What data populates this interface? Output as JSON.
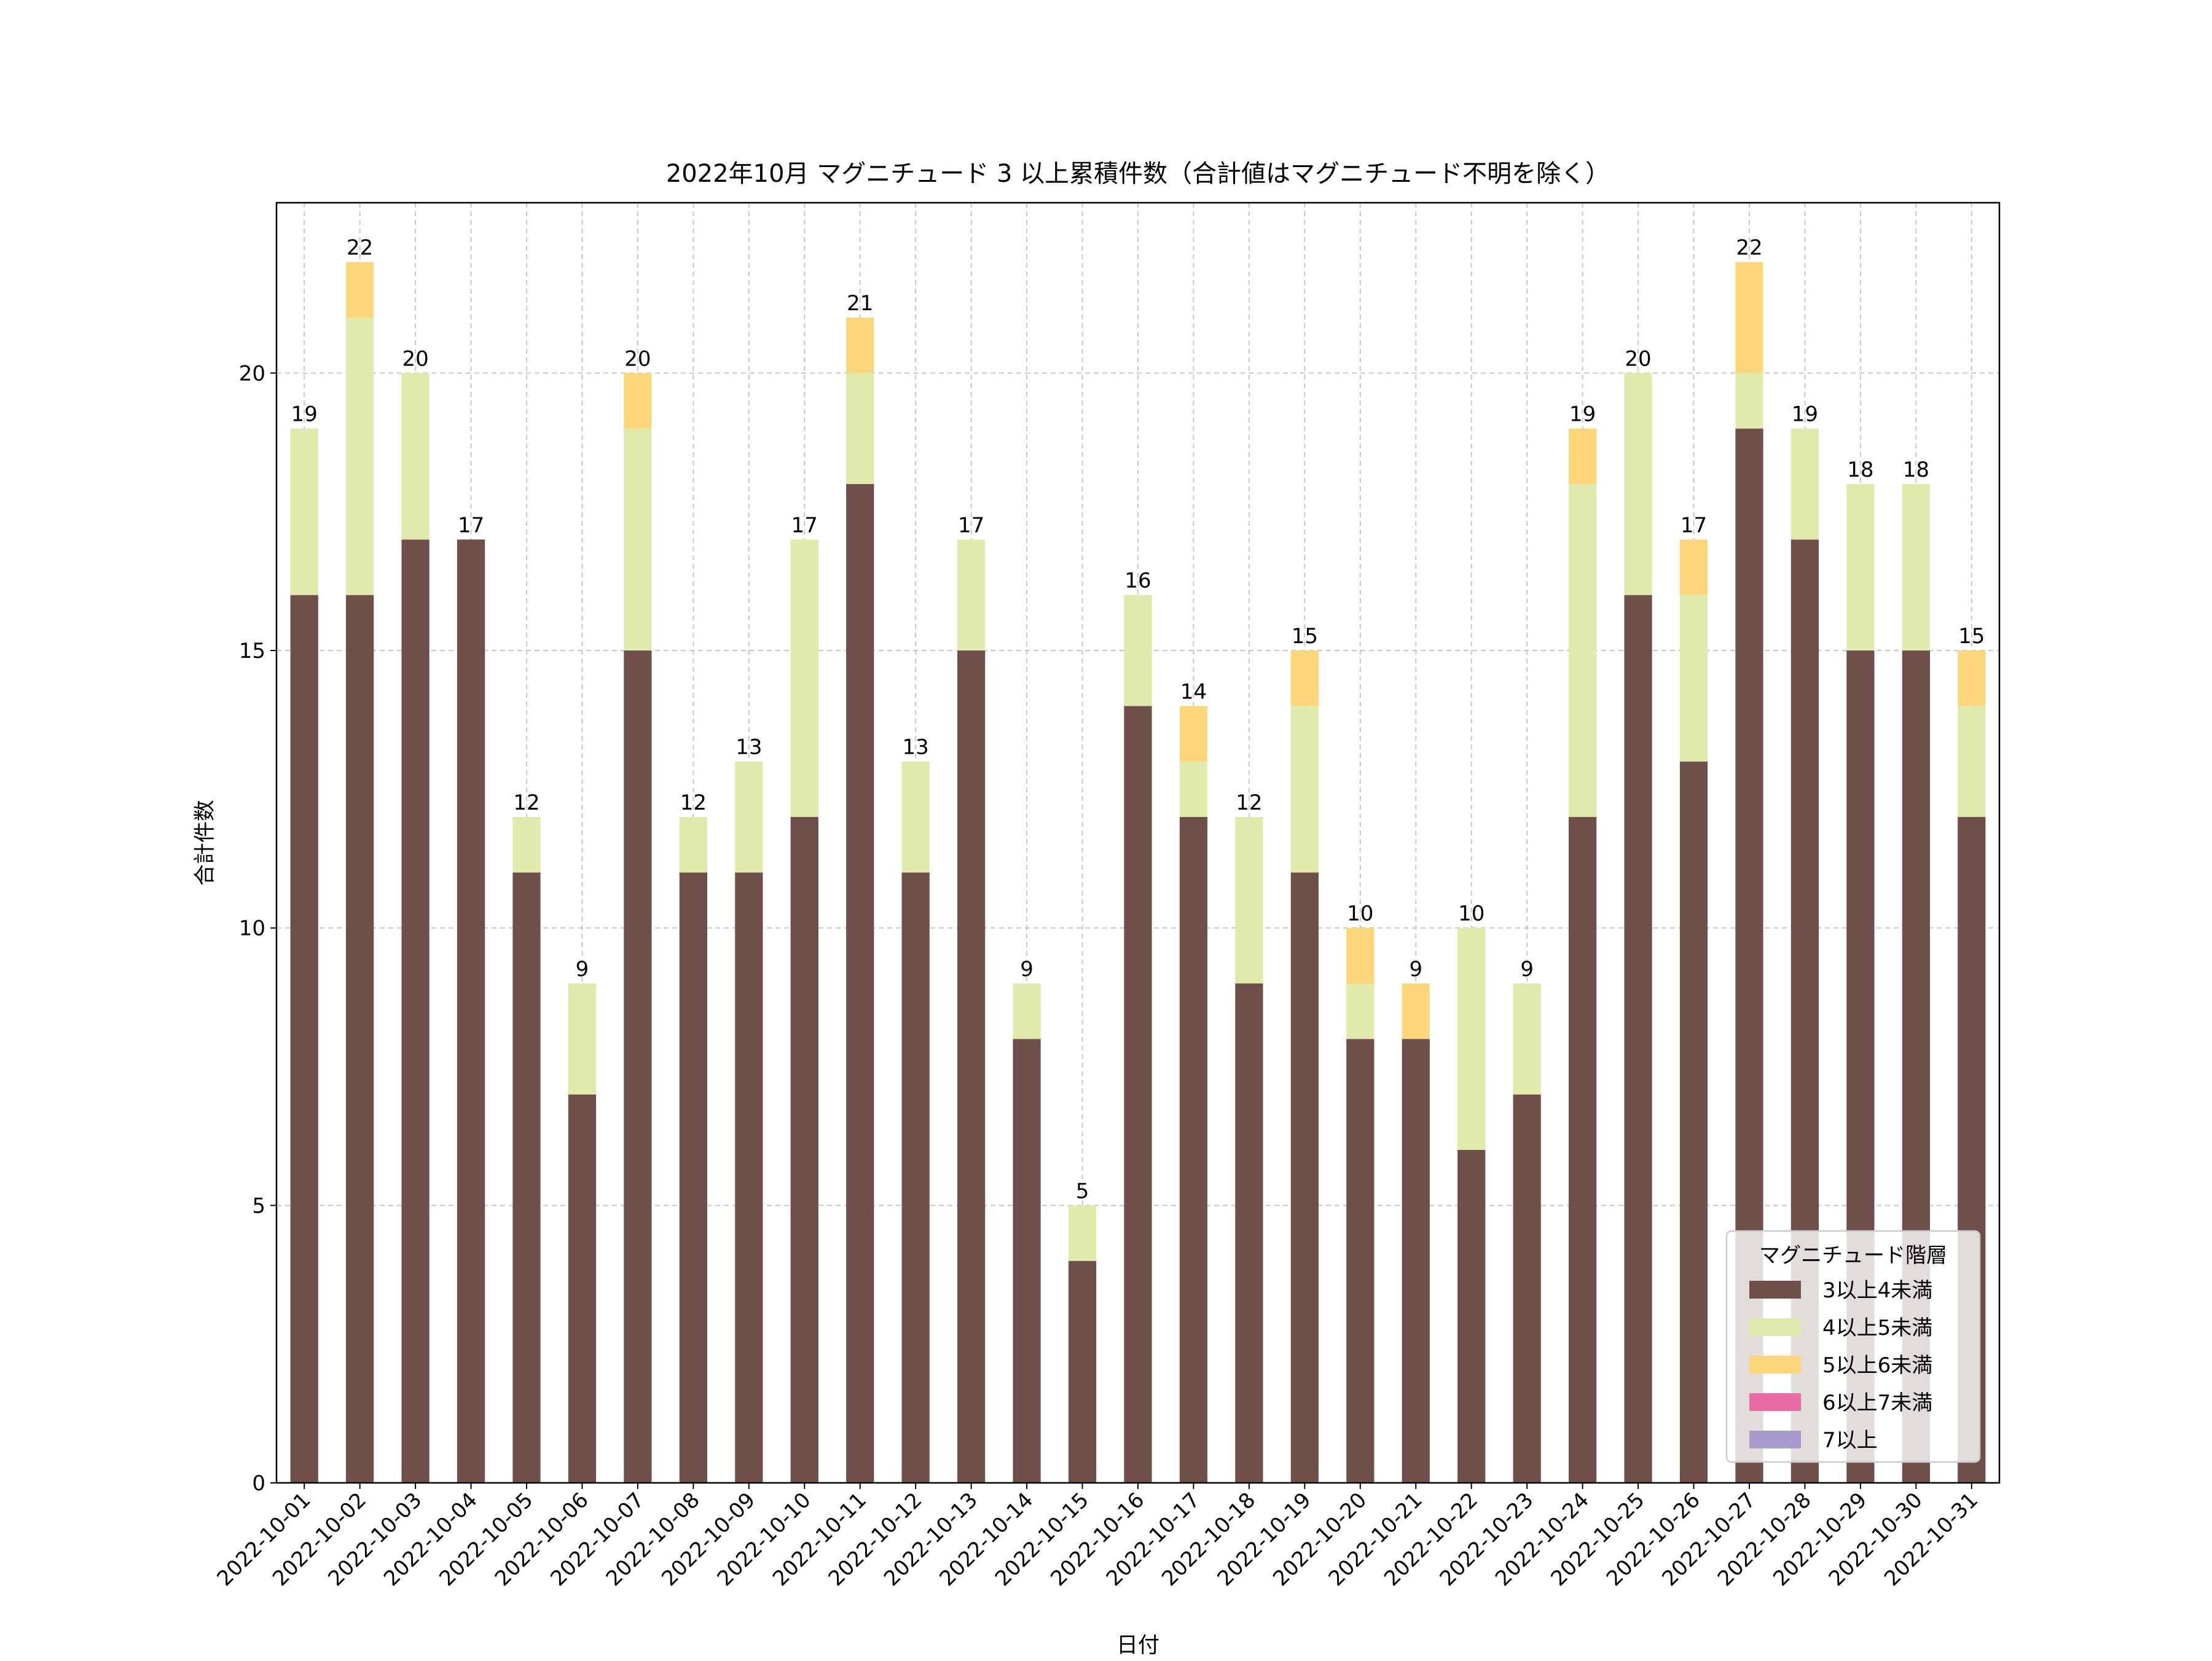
{
  "chart_data": {
    "type": "bar",
    "stacked": true,
    "title": "2022年10月 マグニチュード 3 以上累積件数（合計値はマグニチュード不明を除く）",
    "xlabel": "日付",
    "ylabel": "合計件数",
    "ylim": [
      0,
      23.07
    ],
    "yticks": [
      0,
      5,
      10,
      15,
      20
    ],
    "grid": true,
    "legend": {
      "title": "マグニチュード階層",
      "placement": "bottom-right"
    },
    "categories": [
      "2022-10-01",
      "2022-10-02",
      "2022-10-03",
      "2022-10-04",
      "2022-10-05",
      "2022-10-06",
      "2022-10-07",
      "2022-10-08",
      "2022-10-09",
      "2022-10-10",
      "2022-10-11",
      "2022-10-12",
      "2022-10-13",
      "2022-10-14",
      "2022-10-15",
      "2022-10-16",
      "2022-10-17",
      "2022-10-18",
      "2022-10-19",
      "2022-10-20",
      "2022-10-21",
      "2022-10-22",
      "2022-10-23",
      "2022-10-24",
      "2022-10-25",
      "2022-10-26",
      "2022-10-27",
      "2022-10-28",
      "2022-10-29",
      "2022-10-30",
      "2022-10-31"
    ],
    "series": [
      {
        "name": "3以上4未満",
        "color": "#6e4f4a",
        "values": [
          16,
          16,
          17,
          17,
          11,
          7,
          15,
          11,
          11,
          12,
          18,
          11,
          15,
          8,
          4,
          14,
          12,
          9,
          11,
          8,
          8,
          6,
          7,
          12,
          16,
          13,
          19,
          17,
          15,
          15,
          12
        ]
      },
      {
        "name": "4以上5未満",
        "color": "#e0eaad",
        "values": [
          3,
          5,
          3,
          0,
          1,
          2,
          4,
          1,
          2,
          5,
          2,
          2,
          2,
          1,
          1,
          2,
          1,
          3,
          3,
          1,
          0,
          4,
          2,
          6,
          4,
          3,
          1,
          2,
          3,
          3,
          2
        ]
      },
      {
        "name": "5以上6未満",
        "color": "#fcd67a",
        "values": [
          0,
          1,
          0,
          0,
          0,
          0,
          1,
          0,
          0,
          0,
          1,
          0,
          0,
          0,
          0,
          0,
          1,
          0,
          1,
          1,
          1,
          0,
          0,
          1,
          0,
          1,
          2,
          0,
          0,
          0,
          1
        ]
      },
      {
        "name": "6以上7未満",
        "color": "#ea6ca4",
        "values": [
          0,
          0,
          0,
          0,
          0,
          0,
          0,
          0,
          0,
          0,
          0,
          0,
          0,
          0,
          0,
          0,
          0,
          0,
          0,
          0,
          0,
          0,
          0,
          0,
          0,
          0,
          0,
          0,
          0,
          0,
          0
        ]
      },
      {
        "name": "7以上",
        "color": "#a69bca",
        "values": [
          0,
          0,
          0,
          0,
          0,
          0,
          0,
          0,
          0,
          0,
          0,
          0,
          0,
          0,
          0,
          0,
          0,
          0,
          0,
          0,
          0,
          0,
          0,
          0,
          0,
          0,
          0,
          0,
          0,
          0,
          0
        ]
      }
    ],
    "totals": [
      19,
      22,
      20,
      17,
      12,
      9,
      20,
      12,
      13,
      17,
      21,
      13,
      17,
      9,
      5,
      16,
      14,
      12,
      15,
      10,
      9,
      10,
      9,
      19,
      20,
      17,
      22,
      19,
      18,
      18,
      15
    ]
  }
}
